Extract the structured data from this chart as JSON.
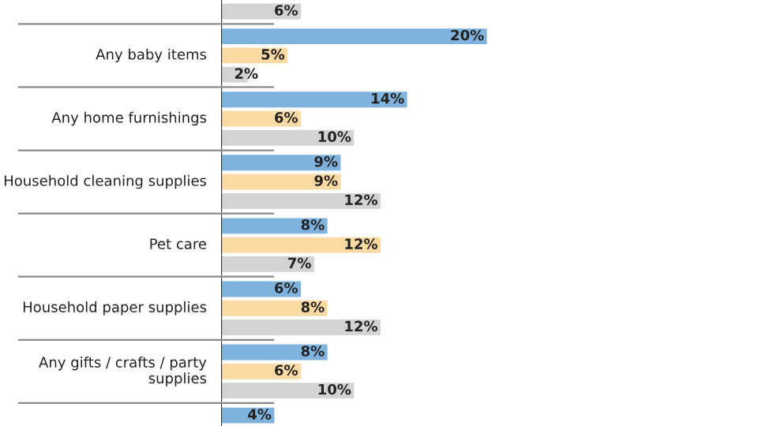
{
  "chart_data": {
    "type": "bar",
    "orientation": "horizontal",
    "categories": [
      null,
      "Any baby items",
      "Any home furnishings",
      "Household cleaning supplies",
      "Pet care",
      "Household paper supplies",
      "Any gifts / crafts / party supplies",
      null
    ],
    "series": [
      {
        "color": "#7fb2dc",
        "values": [
          null,
          20,
          14,
          9,
          8,
          6,
          8,
          4
        ],
        "value_labels": [
          null,
          "20%",
          "14%",
          "9%",
          "8%",
          "6%",
          "8%",
          "4%"
        ]
      },
      {
        "color": "#fdd9a3",
        "values": [
          null,
          5,
          6,
          9,
          12,
          8,
          6,
          null
        ],
        "value_labels": [
          null,
          "5%",
          "6%",
          "9%",
          "12%",
          "8%",
          "6%",
          null
        ]
      },
      {
        "color": "#d2d3d5",
        "values": [
          6,
          2,
          10,
          12,
          7,
          12,
          10,
          null
        ],
        "value_labels": [
          "6%",
          "2%",
          "10%",
          "12%",
          "7%",
          "12%",
          "10%",
          null
        ]
      }
    ]
  }
}
